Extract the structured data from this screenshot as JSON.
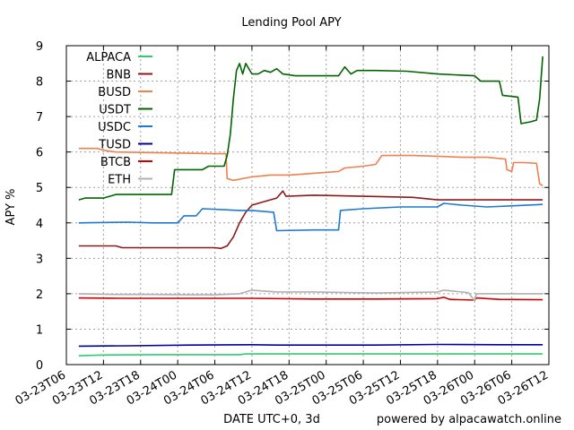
{
  "chart_data": {
    "type": "line",
    "title": "Lending Pool APY",
    "xlabel": "DATE UTC+0, 3d",
    "ylabel": "APY %",
    "footer": "powered by alpacawatch.online",
    "ylim": [
      0,
      9
    ],
    "xlim_hours": [
      0,
      78
    ],
    "yticks": [
      "0",
      "1",
      "2",
      "3",
      "4",
      "5",
      "6",
      "7",
      "8",
      "9"
    ],
    "xticks": [
      {
        "h": 0,
        "label": "03-23T06"
      },
      {
        "h": 6,
        "label": "03-23T12"
      },
      {
        "h": 12,
        "label": "03-23T18"
      },
      {
        "h": 18,
        "label": "03-24T00"
      },
      {
        "h": 24,
        "label": "03-24T06"
      },
      {
        "h": 30,
        "label": "03-24T12"
      },
      {
        "h": 36,
        "label": "03-24T18"
      },
      {
        "h": 42,
        "label": "03-25T00"
      },
      {
        "h": 48,
        "label": "03-25T06"
      },
      {
        "h": 54,
        "label": "03-25T12"
      },
      {
        "h": 60,
        "label": "03-25T18"
      },
      {
        "h": 66,
        "label": "03-26T00"
      },
      {
        "h": 72,
        "label": "03-26T06"
      },
      {
        "h": 78,
        "label": "03-26T12"
      }
    ],
    "grid": true,
    "legend_position": "top-left",
    "series": [
      {
        "name": "ALPACA",
        "color": "#2ecc71",
        "points": [
          [
            2,
            0.25
          ],
          [
            6,
            0.27
          ],
          [
            14,
            0.28
          ],
          [
            22,
            0.28
          ],
          [
            28,
            0.28
          ],
          [
            29,
            0.3
          ],
          [
            40,
            0.3
          ],
          [
            60,
            0.3
          ],
          [
            77,
            0.3
          ]
        ]
      },
      {
        "name": "BNB",
        "color": "#8b1a1a",
        "points": [
          [
            2,
            3.35
          ],
          [
            8,
            3.35
          ],
          [
            9,
            3.3
          ],
          [
            20,
            3.3
          ],
          [
            24,
            3.3
          ],
          [
            25,
            3.28
          ],
          [
            26,
            3.35
          ],
          [
            27,
            3.6
          ],
          [
            28,
            4.0
          ],
          [
            29,
            4.3
          ],
          [
            30,
            4.5
          ],
          [
            32,
            4.6
          ],
          [
            34,
            4.7
          ],
          [
            35,
            4.9
          ],
          [
            35.5,
            4.75
          ],
          [
            40,
            4.78
          ],
          [
            48,
            4.75
          ],
          [
            56,
            4.72
          ],
          [
            60,
            4.65
          ],
          [
            64,
            4.65
          ],
          [
            70,
            4.65
          ],
          [
            77,
            4.65
          ]
        ]
      },
      {
        "name": "BUSD",
        "color": "#f08050",
        "points": [
          [
            2,
            6.1
          ],
          [
            5,
            6.1
          ],
          [
            6,
            6.05
          ],
          [
            8,
            6.0
          ],
          [
            24,
            5.95
          ],
          [
            25.8,
            5.95
          ],
          [
            26,
            5.25
          ],
          [
            27,
            5.2
          ],
          [
            30,
            5.3
          ],
          [
            33,
            5.35
          ],
          [
            36,
            5.35
          ],
          [
            40,
            5.4
          ],
          [
            44,
            5.45
          ],
          [
            45,
            5.55
          ],
          [
            48,
            5.6
          ],
          [
            50,
            5.65
          ],
          [
            51,
            5.9
          ],
          [
            56,
            5.9
          ],
          [
            60,
            5.88
          ],
          [
            64,
            5.85
          ],
          [
            68,
            5.85
          ],
          [
            71,
            5.8
          ],
          [
            71.2,
            5.5
          ],
          [
            72,
            5.45
          ],
          [
            72.3,
            5.7
          ],
          [
            74,
            5.7
          ],
          [
            76,
            5.68
          ],
          [
            76.5,
            5.1
          ],
          [
            77,
            5.05
          ]
        ]
      },
      {
        "name": "USDT",
        "color": "#006400",
        "points": [
          [
            2,
            4.65
          ],
          [
            3,
            4.7
          ],
          [
            6,
            4.7
          ],
          [
            8,
            4.8
          ],
          [
            16,
            4.8
          ],
          [
            17,
            4.8
          ],
          [
            17.5,
            5.5
          ],
          [
            20,
            5.5
          ],
          [
            22,
            5.5
          ],
          [
            23,
            5.6
          ],
          [
            25.5,
            5.6
          ],
          [
            26,
            5.9
          ],
          [
            26.5,
            6.5
          ],
          [
            27,
            7.5
          ],
          [
            27.5,
            8.3
          ],
          [
            28,
            8.5
          ],
          [
            28.5,
            8.2
          ],
          [
            29,
            8.5
          ],
          [
            30,
            8.2
          ],
          [
            31,
            8.2
          ],
          [
            32,
            8.3
          ],
          [
            33,
            8.25
          ],
          [
            34,
            8.35
          ],
          [
            35,
            8.2
          ],
          [
            37,
            8.15
          ],
          [
            40,
            8.15
          ],
          [
            44,
            8.15
          ],
          [
            45,
            8.4
          ],
          [
            46,
            8.2
          ],
          [
            47,
            8.3
          ],
          [
            50,
            8.3
          ],
          [
            55,
            8.28
          ],
          [
            60,
            8.2
          ],
          [
            66,
            8.15
          ],
          [
            67,
            8.0
          ],
          [
            70,
            8.0
          ],
          [
            70.5,
            7.6
          ],
          [
            73,
            7.55
          ],
          [
            73.5,
            6.8
          ],
          [
            75,
            6.85
          ],
          [
            76,
            6.9
          ],
          [
            76.5,
            7.5
          ],
          [
            77,
            8.7
          ]
        ]
      },
      {
        "name": "USDC",
        "color": "#1f78d1",
        "points": [
          [
            2,
            4.0
          ],
          [
            10,
            4.02
          ],
          [
            14,
            4.0
          ],
          [
            18,
            4.0
          ],
          [
            19,
            4.2
          ],
          [
            21,
            4.2
          ],
          [
            22,
            4.4
          ],
          [
            28,
            4.35
          ],
          [
            30,
            4.35
          ],
          [
            33.5,
            4.3
          ],
          [
            34,
            3.78
          ],
          [
            40,
            3.8
          ],
          [
            44,
            3.8
          ],
          [
            44.3,
            4.35
          ],
          [
            48,
            4.4
          ],
          [
            54,
            4.45
          ],
          [
            60,
            4.45
          ],
          [
            61,
            4.55
          ],
          [
            64,
            4.5
          ],
          [
            68,
            4.45
          ],
          [
            72,
            4.48
          ],
          [
            77,
            4.52
          ]
        ]
      },
      {
        "name": "TUSD",
        "color": "#0000a0",
        "points": [
          [
            2,
            0.52
          ],
          [
            10,
            0.53
          ],
          [
            20,
            0.55
          ],
          [
            30,
            0.56
          ],
          [
            34,
            0.55
          ],
          [
            40,
            0.55
          ],
          [
            50,
            0.55
          ],
          [
            60,
            0.57
          ],
          [
            70,
            0.56
          ],
          [
            77,
            0.56
          ]
        ]
      },
      {
        "name": "BTCB",
        "color": "#cc0000",
        "points": [
          [
            2,
            1.88
          ],
          [
            10,
            1.87
          ],
          [
            20,
            1.87
          ],
          [
            30,
            1.87
          ],
          [
            40,
            1.85
          ],
          [
            50,
            1.85
          ],
          [
            60,
            1.86
          ],
          [
            61,
            1.9
          ],
          [
            62,
            1.84
          ],
          [
            66,
            1.82
          ],
          [
            66.3,
            1.88
          ],
          [
            70,
            1.84
          ],
          [
            77,
            1.83
          ]
        ]
      },
      {
        "name": "ETH",
        "color": "#b0b0b0",
        "points": [
          [
            2,
            2.0
          ],
          [
            8,
            1.98
          ],
          [
            14,
            1.98
          ],
          [
            20,
            1.97
          ],
          [
            24,
            1.97
          ],
          [
            28,
            2.0
          ],
          [
            30,
            2.1
          ],
          [
            34,
            2.05
          ],
          [
            40,
            2.05
          ],
          [
            50,
            2.02
          ],
          [
            60,
            2.05
          ],
          [
            61,
            2.1
          ],
          [
            65,
            2.03
          ],
          [
            66,
            1.8
          ],
          [
            66.3,
            2.0
          ],
          [
            70,
            2.0
          ],
          [
            77,
            2.0
          ]
        ]
      }
    ]
  }
}
